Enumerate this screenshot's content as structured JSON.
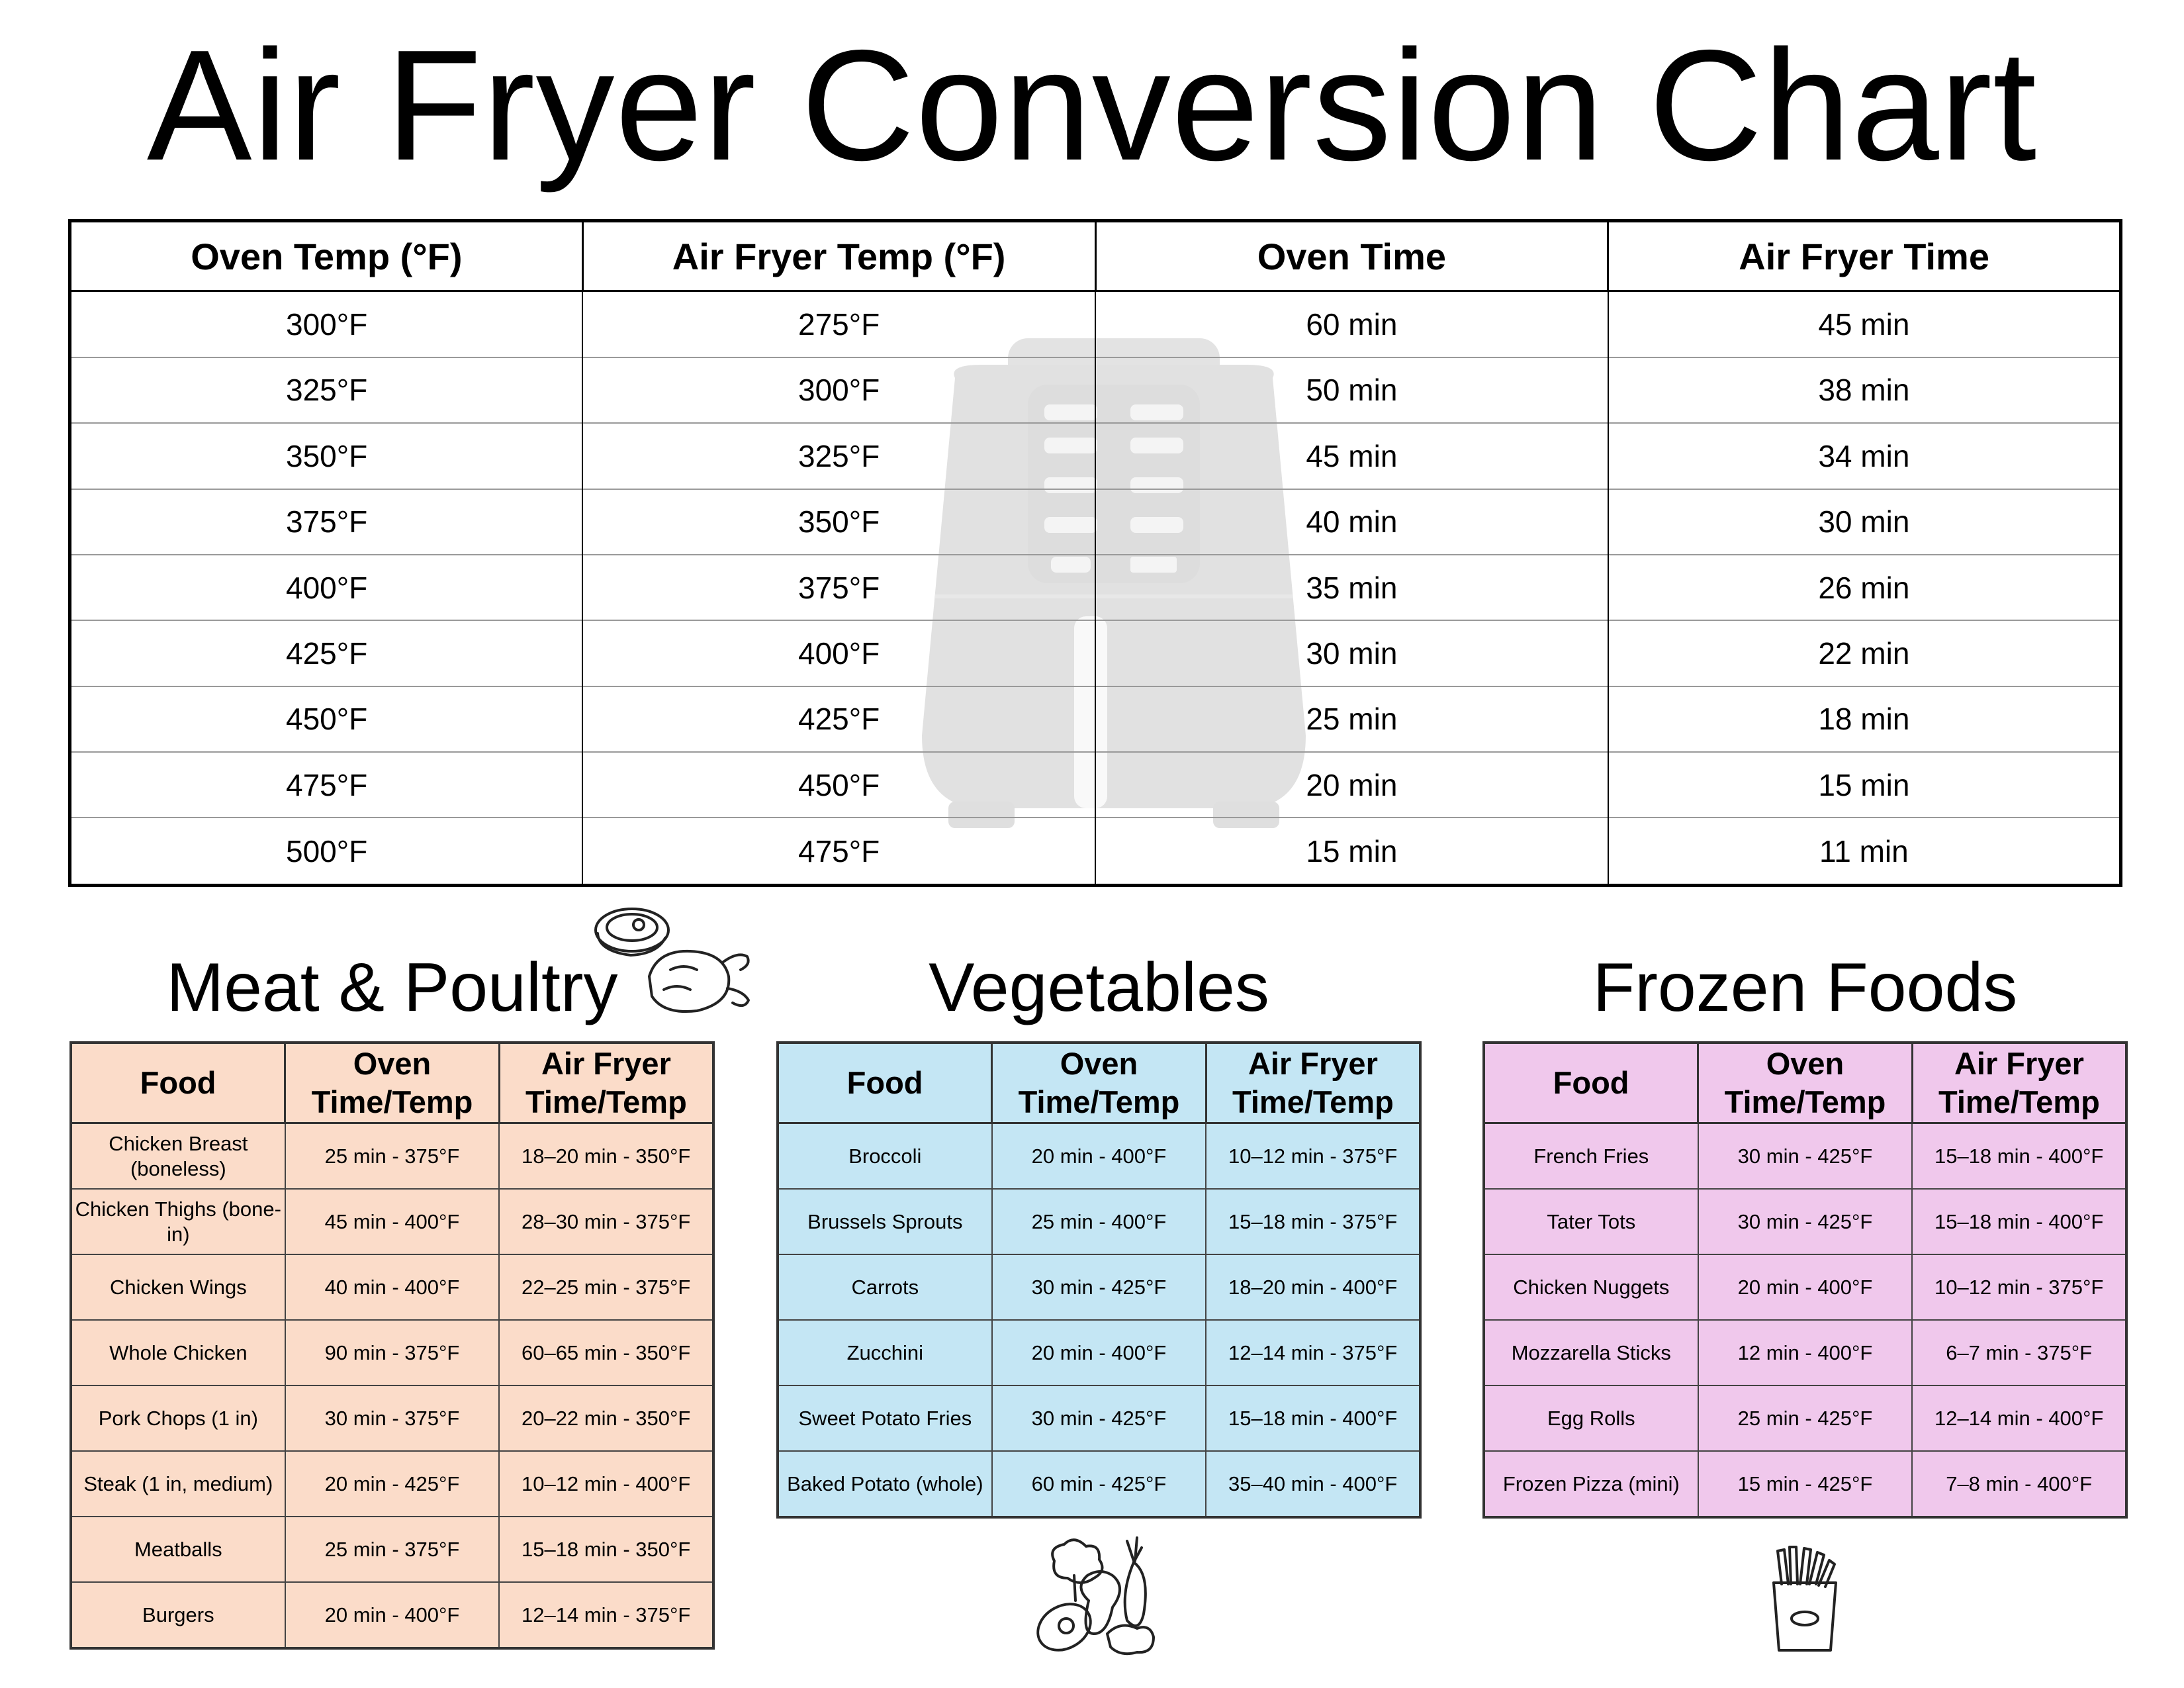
{
  "page": {
    "title": "Air Fryer Conversion Chart"
  },
  "main_table": {
    "headers": [
      "Oven Temp (°F)",
      "Air Fryer Temp (°F)",
      "Oven Time",
      "Air Fryer Time"
    ],
    "rows": [
      [
        "300°F",
        "275°F",
        "60 min",
        "45 min"
      ],
      [
        "325°F",
        "300°F",
        "50 min",
        "38 min"
      ],
      [
        "350°F",
        "325°F",
        "45 min",
        "34 min"
      ],
      [
        "375°F",
        "350°F",
        "40 min",
        "30 min"
      ],
      [
        "400°F",
        "375°F",
        "35 min",
        "26 min"
      ],
      [
        "425°F",
        "400°F",
        "30 min",
        "22 min"
      ],
      [
        "450°F",
        "425°F",
        "25 min",
        "18 min"
      ],
      [
        "475°F",
        "450°F",
        "20 min",
        "15 min"
      ],
      [
        "500°F",
        "475°F",
        "15 min",
        "11 min"
      ]
    ],
    "background_icon": "air-fryer-icon"
  },
  "sections": {
    "meat": {
      "title": "Meat & Poultry",
      "icon": "meat-poultry-icon",
      "color": "#fbdcc9",
      "headers": [
        "Food",
        "Oven Time/Temp",
        "Air Fryer Time/Temp"
      ],
      "rows": [
        [
          "Chicken Breast (boneless)",
          "25 min - 375°F",
          "18–20 min - 350°F"
        ],
        [
          "Chicken Thighs (bone-in)",
          "45 min - 400°F",
          "28–30 min - 375°F"
        ],
        [
          "Chicken Wings",
          "40 min - 400°F",
          "22–25 min - 375°F"
        ],
        [
          "Whole Chicken",
          "90 min - 375°F",
          "60–65 min - 350°F"
        ],
        [
          "Pork Chops (1 in)",
          "30 min - 375°F",
          "20–22 min - 350°F"
        ],
        [
          "Steak (1 in, medium)",
          "20 min - 425°F",
          "10–12 min - 400°F"
        ],
        [
          "Meatballs",
          "25 min - 375°F",
          "15–18 min - 350°F"
        ],
        [
          "Burgers",
          "20 min - 400°F",
          "12–14 min - 375°F"
        ]
      ]
    },
    "veg": {
      "title": "Vegetables",
      "icon": "vegetables-icon",
      "color": "#c4e6f4",
      "headers": [
        "Food",
        "Oven Time/Temp",
        "Air Fryer Time/Temp"
      ],
      "rows": [
        [
          "Broccoli",
          "20 min - 400°F",
          "10–12 min - 375°F"
        ],
        [
          "Brussels Sprouts",
          "25 min - 400°F",
          "15–18 min - 375°F"
        ],
        [
          "Carrots",
          "30 min - 425°F",
          "18–20 min - 400°F"
        ],
        [
          "Zucchini",
          "20 min - 400°F",
          "12–14 min - 375°F"
        ],
        [
          "Sweet Potato Fries",
          "30 min - 425°F",
          "15–18 min - 400°F"
        ],
        [
          "Baked Potato (whole)",
          "60 min - 425°F",
          "35–40 min - 400°F"
        ]
      ]
    },
    "frozen": {
      "title": "Frozen Foods",
      "icon": "french-fries-icon",
      "color": "#f0c8ec",
      "headers": [
        "Food",
        "Oven Time/Temp",
        "Air Fryer Time/Temp"
      ],
      "rows": [
        [
          "French Fries",
          "30 min - 425°F",
          "15–18 min - 400°F"
        ],
        [
          "Tater Tots",
          "30 min - 425°F",
          "15–18 min - 400°F"
        ],
        [
          "Chicken Nuggets",
          "20 min - 400°F",
          "10–12 min - 375°F"
        ],
        [
          "Mozzarella Sticks",
          "12 min - 400°F",
          "6–7 min - 375°F"
        ],
        [
          "Egg Rolls",
          "25 min - 425°F",
          "12–14 min - 400°F"
        ],
        [
          "Frozen Pizza (mini)",
          "15 min - 425°F",
          "7–8 min - 400°F"
        ]
      ]
    }
  }
}
